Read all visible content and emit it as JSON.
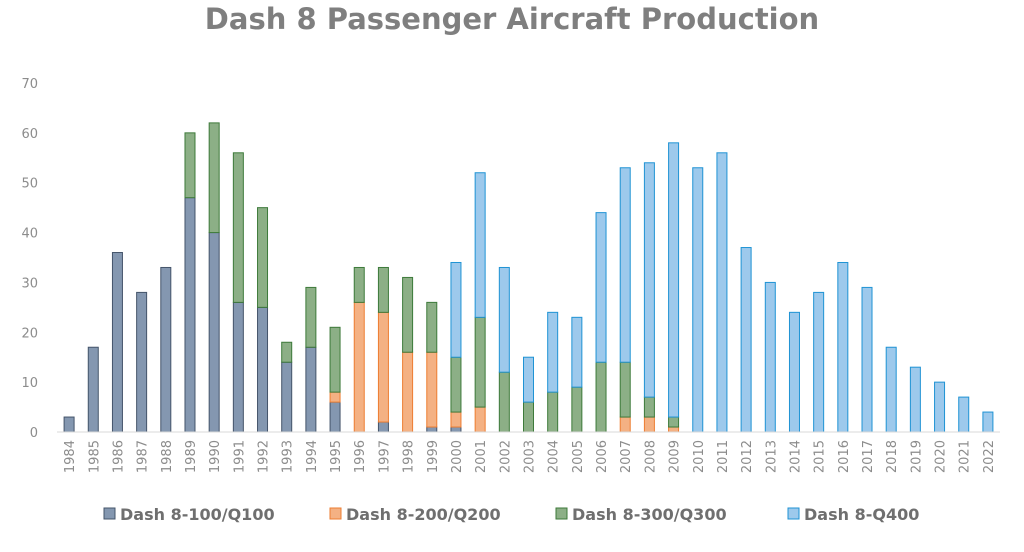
{
  "chart_data": {
    "type": "bar",
    "stacked": true,
    "title": "Dash 8 Passenger Aircraft Production",
    "xlabel": "",
    "ylabel": "",
    "ylim": [
      0,
      70
    ],
    "yticks": [
      0,
      10,
      20,
      30,
      40,
      50,
      60,
      70
    ],
    "grid": false,
    "legend_position": "bottom",
    "categories": [
      "1984",
      "1985",
      "1986",
      "1987",
      "1988",
      "1989",
      "1990",
      "1991",
      "1992",
      "1993",
      "1994",
      "1995",
      "1996",
      "1997",
      "1998",
      "1999",
      "2000",
      "2001",
      "2002",
      "2003",
      "2004",
      "2005",
      "2006",
      "2007",
      "2008",
      "2009",
      "2010",
      "2011",
      "2012",
      "2013",
      "2014",
      "2015",
      "2016",
      "2017",
      "2018",
      "2019",
      "2020",
      "2021",
      "2022"
    ],
    "series": [
      {
        "name": "Dash 8-100/Q100",
        "color": "#8497b0",
        "stroke": "#44546a",
        "values": [
          3,
          17,
          36,
          28,
          33,
          47,
          40,
          26,
          25,
          14,
          17,
          6,
          0,
          2,
          0,
          1,
          1,
          0,
          0,
          0,
          0,
          0,
          0,
          0,
          0,
          0,
          0,
          0,
          0,
          0,
          0,
          0,
          0,
          0,
          0,
          0,
          0,
          0,
          0
        ]
      },
      {
        "name": "Dash 8-200/Q200",
        "color": "#f4b183",
        "stroke": "#ed7d31",
        "values": [
          0,
          0,
          0,
          0,
          0,
          0,
          0,
          0,
          0,
          0,
          0,
          2,
          26,
          22,
          16,
          15,
          3,
          5,
          0,
          0,
          0,
          0,
          0,
          3,
          3,
          1,
          0,
          0,
          0,
          0,
          0,
          0,
          0,
          0,
          0,
          0,
          0,
          0,
          0
        ]
      },
      {
        "name": "Dash 8-300/Q300",
        "color": "#8caf86",
        "stroke": "#3d7a3a",
        "values": [
          0,
          0,
          0,
          0,
          0,
          13,
          22,
          30,
          20,
          4,
          12,
          13,
          7,
          9,
          15,
          10,
          11,
          18,
          12,
          6,
          8,
          9,
          14,
          11,
          4,
          2,
          0,
          0,
          0,
          0,
          0,
          0,
          0,
          0,
          0,
          0,
          0,
          0,
          0
        ]
      },
      {
        "name": "Dash 8-Q400",
        "color": "#9dc9ec",
        "stroke": "#1f93d4",
        "values": [
          0,
          0,
          0,
          0,
          0,
          0,
          0,
          0,
          0,
          0,
          0,
          0,
          0,
          0,
          0,
          0,
          19,
          29,
          21,
          9,
          16,
          14,
          30,
          39,
          47,
          55,
          53,
          56,
          37,
          30,
          24,
          28,
          34,
          29,
          17,
          13,
          10,
          7,
          4
        ]
      }
    ]
  }
}
